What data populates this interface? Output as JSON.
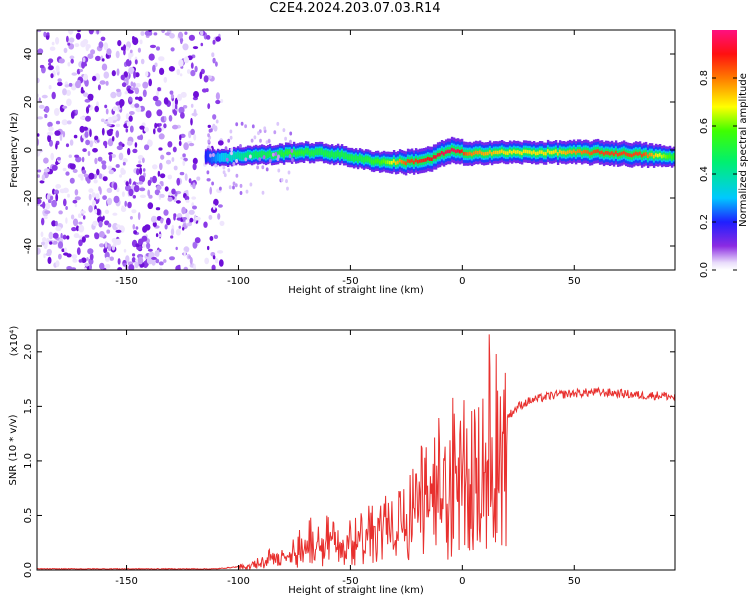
{
  "figure_title": "C2E4.2024.203.07.03.R14",
  "colors": {
    "background": "#ffffff",
    "snr_line": "#e8302e",
    "noise_dots": "#7b22e8",
    "ridge_core": "#e01010"
  },
  "colorbar": {
    "label": "Normalized spectral amplitude",
    "ticks": [
      "0.0",
      "0.2",
      "0.4",
      "0.6",
      "0.8"
    ],
    "range": [
      0,
      1
    ],
    "colormap": "rainbow (purple → blue → cyan → green → yellow → orange → red → magenta)"
  },
  "chart_data": [
    {
      "type": "heatmap",
      "xlabel": "Height of straight line (km)",
      "ylabel": "Frequency (Hz)",
      "xlim": [
        -190,
        95
      ],
      "ylim": [
        -50,
        50
      ],
      "x_ticks": [
        "-150",
        "-100",
        "-50",
        "0",
        "50"
      ],
      "y_ticks": [
        "-40",
        "-20",
        "0",
        "20",
        "40"
      ],
      "noise_region_x": [
        -190,
        -110
      ],
      "ridge": {
        "x": [
          -115,
          -105,
          -95,
          -85,
          -75,
          -65,
          -55,
          -45,
          -35,
          -25,
          -15,
          -8,
          -3,
          2,
          10,
          20,
          40,
          60,
          80,
          95
        ],
        "frequency": [
          -3,
          -3,
          -2,
          -2,
          -1,
          -1,
          -2,
          -4,
          -5,
          -5,
          -4,
          -1,
          0,
          -2,
          -1,
          -1,
          -1,
          -1,
          -2,
          -3
        ],
        "amplitude": [
          0.2,
          0.35,
          0.45,
          0.5,
          0.55,
          0.5,
          0.5,
          0.5,
          0.6,
          0.85,
          0.9,
          0.95,
          0.95,
          0.8,
          0.75,
          0.7,
          0.7,
          0.85,
          0.85,
          0.5
        ]
      },
      "grid": false
    },
    {
      "type": "line",
      "xlabel": "Height of straight line (km)",
      "ylabel": "SNR (10 * v/v)",
      "y_multiplier": "(x10⁴)",
      "xlim": [
        -190,
        95
      ],
      "ylim": [
        0,
        2.2
      ],
      "x_ticks": [
        "-150",
        "-100",
        "-50",
        "0",
        "50"
      ],
      "y_ticks": [
        "0.0",
        "0.5",
        "1.0",
        "1.5",
        "2.0"
      ],
      "series": [
        {
          "x": [
            -190,
            -150,
            -110,
            -100,
            -95,
            -90,
            -85,
            -82,
            -80,
            -75,
            -70,
            -65,
            -60,
            -55,
            -50,
            -45,
            -40,
            -35,
            -30,
            -25,
            -20,
            -15,
            -10,
            -5,
            0,
            3,
            5,
            6,
            7,
            8,
            9,
            10,
            12,
            14,
            16,
            18,
            20,
            25,
            30,
            40,
            50,
            60,
            70,
            80,
            90,
            95
          ],
          "values": [
            0.01,
            0.01,
            0.01,
            0.03,
            0.05,
            0.08,
            0.12,
            0.1,
            0.15,
            0.2,
            0.25,
            0.3,
            0.3,
            0.35,
            0.35,
            0.38,
            0.4,
            0.45,
            0.5,
            0.55,
            0.65,
            0.75,
            0.8,
            0.9,
            1.0,
            1.1,
            1.25,
            0.8,
            2.15,
            0.35,
            1.1,
            1.1,
            1.5,
            1.0,
            1.35,
            1.25,
            1.4,
            1.5,
            1.55,
            1.6,
            1.62,
            1.63,
            1.62,
            1.6,
            1.6,
            1.58
          ]
        }
      ],
      "grid": false
    }
  ]
}
